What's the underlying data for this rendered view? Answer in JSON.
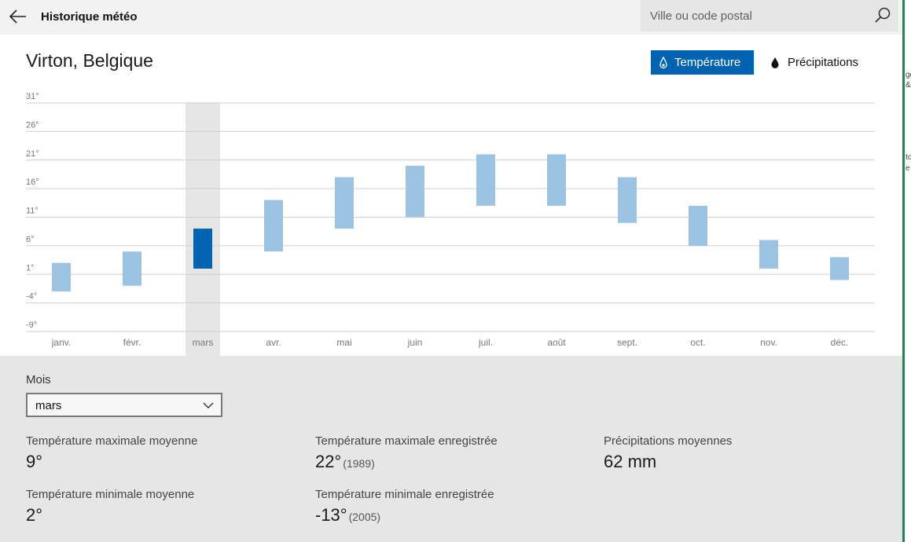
{
  "header": {
    "title": "Historique météo",
    "back_icon": "arrow-left-icon",
    "search": {
      "placeholder": "Ville ou code postal",
      "value": "",
      "icon": "search-icon"
    }
  },
  "location": "Virton, Belgique",
  "toggle": {
    "temperature_label": "Température",
    "temperature_icon": "thermometer-drop-icon",
    "precipitation_label": "Précipitations",
    "precipitation_icon": "water-drop-icon",
    "active": "temperature"
  },
  "colors": {
    "accent": "#0063b1",
    "bar": "#9dc3e3",
    "bar_selected": "#0063b1",
    "panel": "#e6e6e6",
    "selected_column": "#e6e6e6"
  },
  "chart_data": {
    "type": "bar",
    "subtype": "floating-range",
    "categories": [
      "janv.",
      "févr.",
      "mars",
      "avr.",
      "mai",
      "juin",
      "juil.",
      "août",
      "sept.",
      "oct.",
      "nov.",
      "déc."
    ],
    "series": [
      {
        "low": [
          -2,
          -1,
          2,
          5,
          9,
          11,
          13,
          13,
          10,
          6,
          2,
          0
        ],
        "high": [
          3,
          5,
          9,
          14,
          18,
          20,
          22,
          22,
          18,
          13,
          7,
          4
        ]
      }
    ],
    "selected_category": "mars",
    "yticks": [
      "31°",
      "26°",
      "21°",
      "16°",
      "11°",
      "6°",
      "1°",
      "-4°",
      "-9°"
    ],
    "ylim": [
      -9,
      31
    ],
    "grid": true
  },
  "details": {
    "month_label": "Mois",
    "month_value": "mars",
    "month_chevron_icon": "chevron-down-icon",
    "avg_max": {
      "label": "Température maximale moyenne",
      "value": "9°"
    },
    "avg_min": {
      "label": "Température minimale moyenne",
      "value": "2°"
    },
    "rec_max": {
      "label": "Température maximale enregistrée",
      "value": "22°",
      "year": "(1989)"
    },
    "rec_min": {
      "label": "Température minimale enregistrée",
      "value": "-13°",
      "year": "(2005)"
    },
    "avg_precip": {
      "label": "Précipitations moyennes",
      "value": "62 mm"
    }
  },
  "side_strip": {
    "fragments": [
      "ge",
      "&",
      "to",
      "e"
    ]
  }
}
